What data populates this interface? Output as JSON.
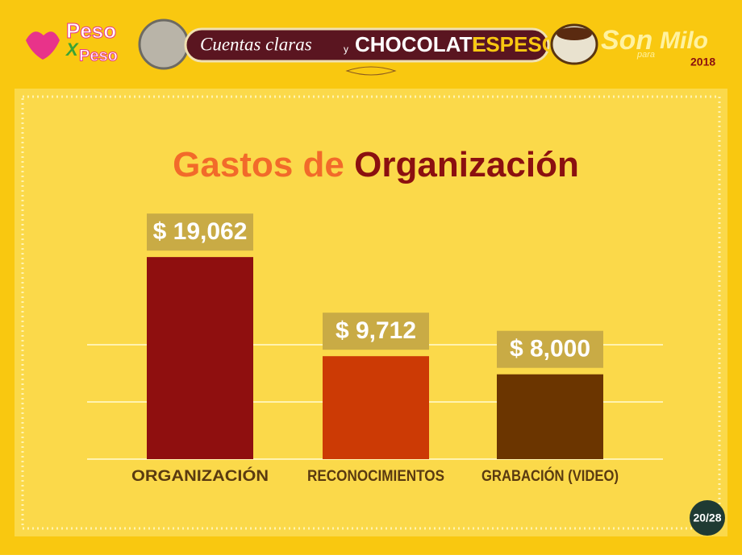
{
  "header": {
    "logo_left": [
      "Peso",
      "X",
      "Peso"
    ],
    "banner": [
      "Cuentas claras",
      "y",
      "CHOCOLATE",
      "ESPESO"
    ],
    "logo_right": [
      "Son",
      "para",
      "Milo",
      "2018"
    ]
  },
  "chart_data": {
    "type": "bar",
    "title": [
      "Gastos de",
      "Organización"
    ],
    "categories": [
      "ORGANIZACIÓN",
      "RECONOCIMIENTOS",
      "GRABACIÓN (VIDEO)"
    ],
    "values": [
      19062,
      9712,
      8000
    ],
    "value_labels": [
      "$ 19,062",
      "$ 9,712",
      "$ 8,000"
    ],
    "colors": [
      "#8f0f0f",
      "#cc3a05",
      "#6b3500"
    ],
    "ylim": [
      0,
      25000
    ]
  },
  "page_number": "20/28"
}
